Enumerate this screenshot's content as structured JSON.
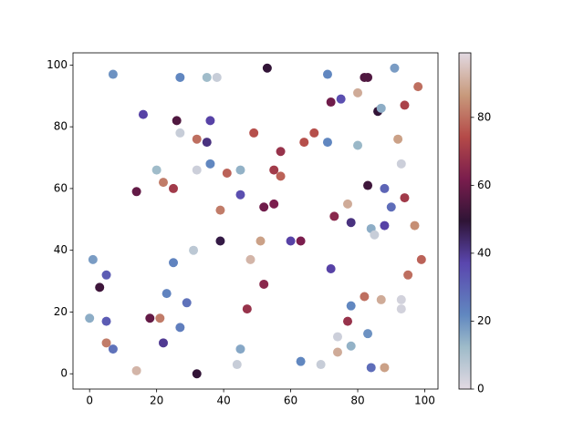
{
  "chart_data": {
    "type": "scatter",
    "x": [
      7,
      27,
      35,
      38,
      53,
      71,
      82,
      83,
      91,
      98,
      80,
      72,
      75,
      86,
      87,
      94,
      16,
      26,
      36,
      27,
      49,
      67,
      32,
      35,
      64,
      71,
      80,
      92,
      57,
      36,
      20,
      32,
      45,
      41,
      55,
      57,
      93,
      22,
      25,
      14,
      45,
      83,
      88,
      94,
      52,
      55,
      77,
      90,
      39,
      73,
      78,
      88,
      97,
      84,
      85,
      39,
      51,
      60,
      63,
      31,
      1,
      48,
      99,
      25,
      72,
      5,
      95,
      3,
      52,
      23,
      82,
      87,
      93,
      29,
      78,
      93,
      47,
      0,
      18,
      21,
      5,
      77,
      27,
      83,
      74,
      5,
      22,
      78,
      7,
      45,
      74,
      44,
      63,
      69,
      14,
      84,
      88,
      32
    ],
    "y": [
      97,
      96,
      96,
      96,
      99,
      97,
      96,
      96,
      99,
      93,
      91,
      88,
      89,
      85,
      86,
      87,
      84,
      82,
      82,
      78,
      78,
      78,
      76,
      75,
      75,
      75,
      74,
      76,
      72,
      68,
      66,
      66,
      66,
      65,
      66,
      64,
      68,
      62,
      60,
      59,
      58,
      61,
      60,
      57,
      54,
      55,
      55,
      54,
      53,
      51,
      49,
      48,
      48,
      47,
      45,
      43,
      43,
      43,
      43,
      40,
      37,
      37,
      37,
      36,
      34,
      32,
      32,
      28,
      29,
      26,
      25,
      24,
      24,
      23,
      22,
      21,
      21,
      18,
      18,
      18,
      17,
      17,
      15,
      13,
      12,
      10,
      10,
      9,
      8,
      8,
      7,
      3,
      4,
      3,
      1,
      2,
      2,
      0
    ],
    "c": [
      20,
      22,
      12,
      5,
      50,
      22,
      55,
      55,
      18,
      80,
      90,
      60,
      35,
      50,
      15,
      72,
      38,
      55,
      38,
      5,
      75,
      75,
      80,
      42,
      75,
      22,
      13,
      88,
      68,
      22,
      12,
      4,
      14,
      78,
      70,
      78,
      4,
      82,
      70,
      58,
      35,
      52,
      30,
      70,
      60,
      62,
      90,
      28,
      82,
      65,
      42,
      38,
      85,
      15,
      5,
      48,
      88,
      38,
      62,
      7,
      18,
      92,
      78,
      23,
      38,
      32,
      80,
      52,
      65,
      23,
      80,
      90,
      3,
      27,
      22,
      3,
      68,
      15,
      58,
      82,
      32,
      68,
      24,
      20,
      4,
      82,
      40,
      14,
      27,
      16,
      90,
      5,
      22,
      5,
      92,
      28,
      88,
      50
    ],
    "colormap": "twilight_shifted",
    "clim": [
      0,
      99
    ],
    "cticks": [
      0,
      20,
      40,
      60,
      80
    ],
    "xlim": [
      -4.95,
      103.95
    ],
    "xticks": [
      0,
      20,
      40,
      60,
      80,
      100
    ],
    "ylim": [
      -4.95,
      103.95
    ],
    "yticks": [
      0,
      20,
      40,
      60,
      80,
      100
    ]
  }
}
